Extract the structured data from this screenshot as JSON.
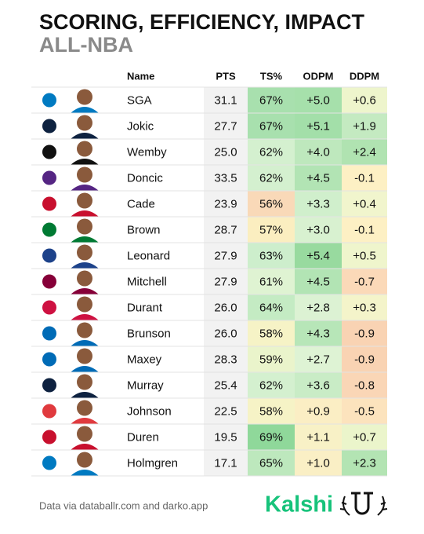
{
  "header": {
    "title": "SCORING, EFFICIENCY, IMPACT",
    "subtitle": "ALL-NBA"
  },
  "table": {
    "columns": [
      "Name",
      "PTS",
      "TS%",
      "ODPM",
      "DDPM"
    ],
    "rows": [
      [
        "SGA",
        "31.1",
        "67%",
        "+5.0",
        "+0.6"
      ],
      [
        "Jokic",
        "27.7",
        "67%",
        "+5.1",
        "+1.9"
      ],
      [
        "Wemby",
        "25.0",
        "62%",
        "+4.0",
        "+2.4"
      ],
      [
        "Doncic",
        "33.5",
        "62%",
        "+4.5",
        "-0.1"
      ],
      [
        "Cade",
        "23.9",
        "56%",
        "+3.3",
        "+0.4"
      ],
      [
        "Brown",
        "28.7",
        "57%",
        "+3.0",
        "-0.1"
      ],
      [
        "Leonard",
        "27.9",
        "63%",
        "+5.4",
        "+0.5"
      ],
      [
        "Mitchell",
        "27.9",
        "61%",
        "+4.5",
        "-0.7"
      ],
      [
        "Durant",
        "26.0",
        "64%",
        "+2.8",
        "+0.3"
      ],
      [
        "Brunson",
        "26.0",
        "58%",
        "+4.3",
        "-0.9"
      ],
      [
        "Maxey",
        "28.3",
        "59%",
        "+2.7",
        "-0.9"
      ],
      [
        "Murray",
        "25.4",
        "62%",
        "+3.6",
        "-0.8"
      ],
      [
        "Johnson",
        "22.5",
        "58%",
        "+0.9",
        "-0.5"
      ],
      [
        "Duren",
        "19.5",
        "69%",
        "+1.1",
        "+0.7"
      ],
      [
        "Holmgren",
        "17.1",
        "65%",
        "+1.0",
        "+2.3"
      ]
    ],
    "cell_colors": [
      [
        "#a8e0ae",
        "#a6e0ab",
        "#eef5cc"
      ],
      [
        "#a8e0ae",
        "#a3dfa9",
        "#c4eac1"
      ],
      [
        "#d4f0cf",
        "#bee8bd",
        "#b0e3b1"
      ],
      [
        "#d4f0cf",
        "#b2e4b4",
        "#fdf0c4"
      ],
      [
        "#f9d9b8",
        "#d0efcc",
        "#f1f5cd"
      ],
      [
        "#fbeec0",
        "#d8f1d0",
        "#fdf0c4"
      ],
      [
        "#cdeecc",
        "#98da9f",
        "#eff5cc"
      ],
      [
        "#dff3d2",
        "#b2e4b4",
        "#fbd9b8"
      ],
      [
        "#c4ebc3",
        "#dcf2d3",
        "#f4f4ca"
      ],
      [
        "#f6f3c6",
        "#b7e6b8",
        "#f9d3b3"
      ],
      [
        "#eaf4cb",
        "#def3d4",
        "#f9d3b3"
      ],
      [
        "#d4f0cf",
        "#c9ecc6",
        "#fad6b6"
      ],
      [
        "#f6f3c6",
        "#fbeec4",
        "#fce3bd"
      ],
      [
        "#8fd89a",
        "#f8f1c6",
        "#ebf5cb"
      ],
      [
        "#bde8bd",
        "#faefc5",
        "#b3e4b3"
      ]
    ]
  },
  "footer": {
    "source": "Data via databallr.com and darko.app",
    "brand": "Kalshi"
  }
}
